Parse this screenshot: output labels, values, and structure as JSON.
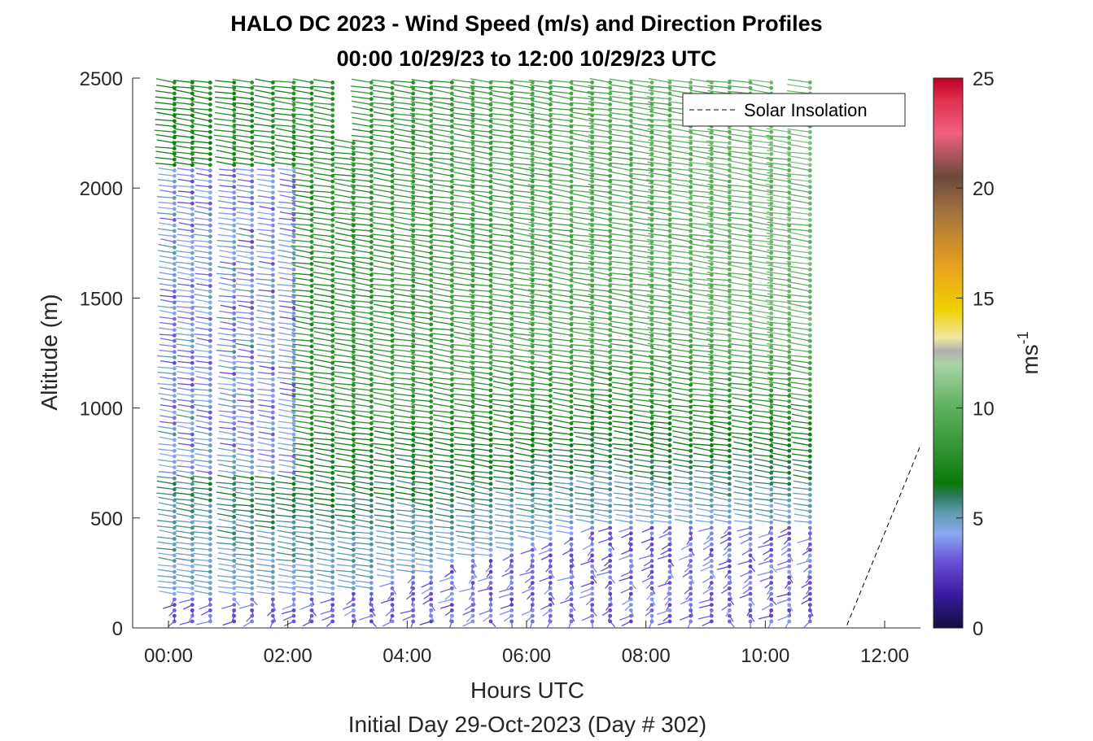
{
  "chart_data": {
    "type": "wind-barb-profile",
    "title_line1": "HALO DC 2023 - Wind Speed (m/s) and Direction Profiles",
    "title_line2": "00:00 10/29/23 to 12:00 10/29/23  UTC",
    "xlabel": "Hours UTC",
    "xlabel2": "Initial Day 29-Oct-2023 (Day # 302)",
    "ylabel": "Altitude (m)",
    "xlim_hours": [
      -0.6,
      12.6
    ],
    "ylim": [
      0,
      2500
    ],
    "x_ticks": [
      {
        "hour": 0,
        "label": "00:00"
      },
      {
        "hour": 2,
        "label": "02:00"
      },
      {
        "hour": 4,
        "label": "04:00"
      },
      {
        "hour": 6,
        "label": "06:00"
      },
      {
        "hour": 8,
        "label": "08:00"
      },
      {
        "hour": 10,
        "label": "10:00"
      },
      {
        "hour": 12,
        "label": "12:00"
      }
    ],
    "y_ticks": [
      {
        "value": 0,
        "label": "0"
      },
      {
        "value": 500,
        "label": "500"
      },
      {
        "value": 1000,
        "label": "1000"
      },
      {
        "value": 1500,
        "label": "1500"
      },
      {
        "value": 2000,
        "label": "2000"
      },
      {
        "value": 2500,
        "label": "2500"
      }
    ],
    "colorbar": {
      "label": "ms",
      "label_superscript": "-1",
      "range": [
        0,
        25
      ],
      "ticks": [
        {
          "value": 0,
          "label": "0"
        },
        {
          "value": 5,
          "label": "5"
        },
        {
          "value": 10,
          "label": "10"
        },
        {
          "value": 15,
          "label": "15"
        },
        {
          "value": 20,
          "label": "20"
        },
        {
          "value": 25,
          "label": "25"
        }
      ],
      "stops": [
        {
          "v": 0,
          "c": "#10103a"
        },
        {
          "v": 1.5,
          "c": "#3a1aa0"
        },
        {
          "v": 3.0,
          "c": "#6a4fd6"
        },
        {
          "v": 4.3,
          "c": "#8aaaf2"
        },
        {
          "v": 5.3,
          "c": "#5a9aa8"
        },
        {
          "v": 6.0,
          "c": "#2a7a5a"
        },
        {
          "v": 6.6,
          "c": "#0a7a0a"
        },
        {
          "v": 8.5,
          "c": "#3a9a3a"
        },
        {
          "v": 10.0,
          "c": "#5cb05c"
        },
        {
          "v": 12.0,
          "c": "#a8d4a8"
        },
        {
          "v": 12.6,
          "c": "#b0b0b0"
        },
        {
          "v": 13.2,
          "c": "#f0e8a0"
        },
        {
          "v": 14.5,
          "c": "#f0d000"
        },
        {
          "v": 16.5,
          "c": "#e8a020"
        },
        {
          "v": 19.0,
          "c": "#a07040"
        },
        {
          "v": 20.5,
          "c": "#6a4a3a"
        },
        {
          "v": 22.5,
          "c": "#f06080"
        },
        {
          "v": 24.0,
          "c": "#e03050"
        },
        {
          "v": 25.0,
          "c": "#c00020"
        }
      ]
    },
    "legend": {
      "label": "Solar Insolation",
      "placement": "top-right",
      "style": "dashed"
    },
    "solar_insolation_line": {
      "hours": [
        -0.6,
        11.35,
        12.6
      ],
      "altitude_m": [
        0,
        0,
        830
      ]
    },
    "profile_times_hours": [
      0.1,
      0.4,
      0.7,
      1.1,
      1.4,
      1.75,
      2.1,
      2.4,
      2.75,
      3.1,
      3.4,
      3.75,
      4.1,
      4.4,
      4.75,
      5.1,
      5.4,
      5.75,
      6.1,
      6.4,
      6.75,
      7.1,
      7.4,
      7.75,
      8.1,
      8.4,
      8.75,
      9.1,
      9.4,
      9.75,
      10.1,
      10.4,
      10.75
    ],
    "wind_field": {
      "altitude_step_m": 25,
      "lowest_level_m": 30,
      "top_level_m": 2480,
      "max_level_end_time_h": 11.0,
      "max_level_at_end_m": 650,
      "gap_hours": [
        2.85,
        3.3
      ],
      "low_layer_top_m_early": 150,
      "low_layer_top_m_late": 470,
      "low_layer_transition_hours": [
        3.0,
        7.3
      ],
      "direction_upper_deg": 290,
      "direction_lower_deg": 200,
      "speed_profile_m_s": {
        "upper_green_early": 7.0,
        "upper_green_late": 10.5,
        "mid_blue_early": 3.2,
        "near_surface": 2.5
      }
    }
  }
}
